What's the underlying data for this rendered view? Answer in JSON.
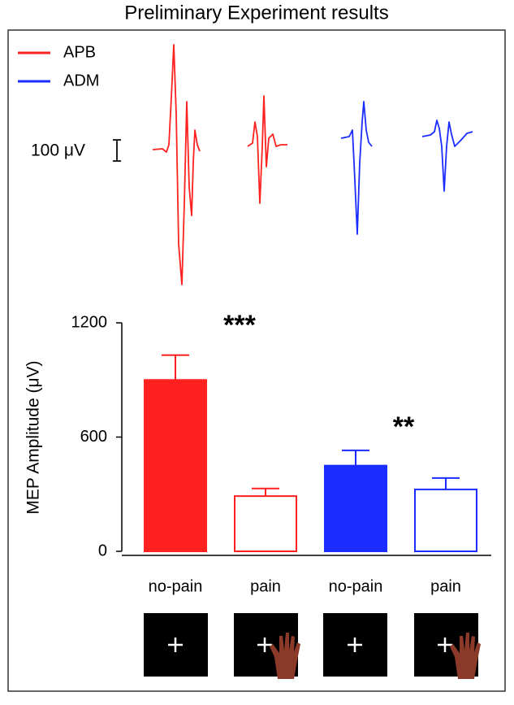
{
  "chart_data": {
    "type": "bar",
    "title": "Preliminary Experiment results",
    "legend": [
      {
        "name": "APB",
        "color": "#ff2020"
      },
      {
        "name": "ADM",
        "color": "#1a2cff"
      }
    ],
    "scale_bar_label": "100 μV",
    "ylabel": "MEP Amplitude (μV)",
    "categories": [
      "no-pain",
      "pain",
      "no-pain",
      "pain"
    ],
    "values": [
      900,
      290,
      450,
      325
    ],
    "errors": [
      130,
      40,
      80,
      60
    ],
    "bar_colors": [
      "#ff2020",
      "#ff2020",
      "#1a2cff",
      "#1a2cff"
    ],
    "filled": [
      true,
      false,
      true,
      false
    ],
    "annotations": [
      "***",
      "**"
    ],
    "ylim": [
      0,
      1200
    ],
    "yticks": [
      0,
      600,
      1200
    ]
  }
}
